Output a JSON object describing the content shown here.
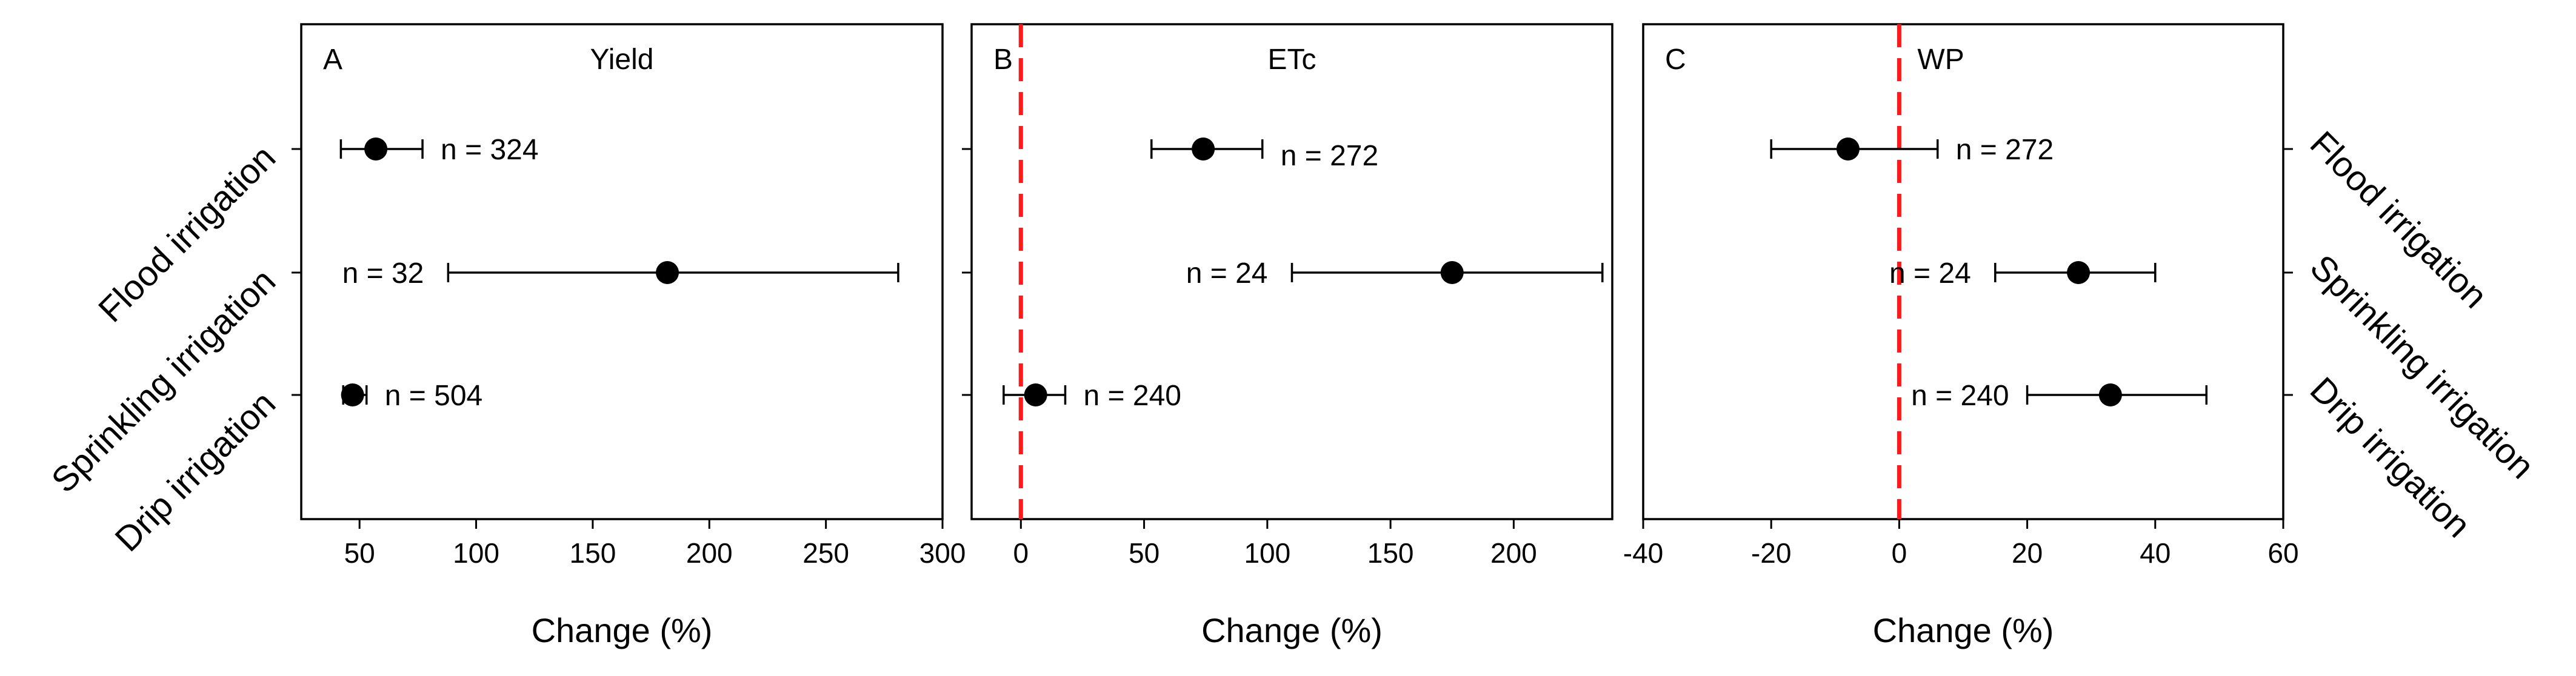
{
  "colors": {
    "axis": "#000000",
    "marker": "#000000",
    "reference_line": "#ff1a1a"
  },
  "chart_data": [
    {
      "type": "scatter",
      "panel_label": "A",
      "title": "Yield",
      "xlabel": "Change (%)",
      "xlim": [
        25,
        300
      ],
      "xticks": [
        50,
        100,
        150,
        200,
        250,
        300
      ],
      "reference_line": null,
      "categories": [
        "Flood irrigation",
        "Sprinkling irrigation",
        "Drip irrigation"
      ],
      "points": [
        {
          "category": "Flood irrigation",
          "x": 57,
          "ci": [
            42,
            77
          ],
          "n_label": "n = 324"
        },
        {
          "category": "Sprinkling irrigation",
          "x": 182,
          "ci": [
            88,
            281
          ],
          "n_label": "n = 32"
        },
        {
          "category": "Drip irrigation",
          "x": 47,
          "ci": [
            43,
            53
          ],
          "n_label": "n = 504"
        }
      ]
    },
    {
      "type": "scatter",
      "panel_label": "B",
      "title": "ETc",
      "xlabel": "Change (%)",
      "xlim": [
        -20,
        240
      ],
      "xticks": [
        0,
        50,
        100,
        150,
        200
      ],
      "reference_line": 0,
      "categories": [
        "Flood irrigation",
        "Sprinkling irrigation",
        "Drip irrigation"
      ],
      "points": [
        {
          "category": "Flood irrigation",
          "x": 74,
          "ci": [
            53,
            98
          ],
          "n_label": "n = 272"
        },
        {
          "category": "Sprinkling irrigation",
          "x": 175,
          "ci": [
            110,
            236
          ],
          "n_label": "n = 24"
        },
        {
          "category": "Drip irrigation",
          "x": 6,
          "ci": [
            -7,
            18
          ],
          "n_label": "n = 240"
        }
      ]
    },
    {
      "type": "scatter",
      "panel_label": "C",
      "title": "WP",
      "xlabel": "Change (%)",
      "xlim": [
        -40,
        60
      ],
      "xticks": [
        -40,
        -20,
        0,
        20,
        40,
        60
      ],
      "reference_line": 0,
      "categories": [
        "Flood irrigation",
        "Sprinkling irrigation",
        "Drip irrigation"
      ],
      "points": [
        {
          "category": "Flood irrigation",
          "x": -8,
          "ci": [
            -20,
            6
          ],
          "n_label": "n = 272"
        },
        {
          "category": "Sprinkling irrigation",
          "x": 28,
          "ci": [
            15,
            40
          ],
          "n_label": "n = 24"
        },
        {
          "category": "Drip irrigation",
          "x": 33,
          "ci": [
            20,
            48
          ],
          "n_label": "n = 240"
        }
      ]
    }
  ]
}
